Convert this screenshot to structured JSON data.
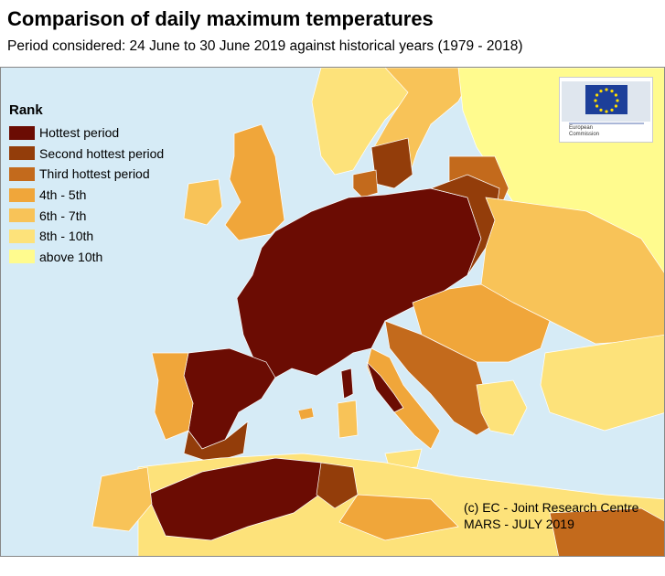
{
  "title": "Comparison of daily maximum temperatures",
  "subtitle": "Period considered: 24 June to 30 June 2019 against historical years (1979 - 2018)",
  "legend": {
    "title": "Rank",
    "items": [
      {
        "label": "Hottest period",
        "color": "#6b0c03"
      },
      {
        "label": "Second hottest period",
        "color": "#933d0a"
      },
      {
        "label": "Third hottest period",
        "color": "#c36a1c"
      },
      {
        "label": "4th - 5th",
        "color": "#f0a63a"
      },
      {
        "label": "6th - 7th",
        "color": "#f8c358"
      },
      {
        "label": "8th - 10th",
        "color": "#fde27a"
      },
      {
        "label": "above 10th",
        "color": "#fffb8e"
      }
    ]
  },
  "credit": {
    "line1": "(c) EC - Joint Research Centre",
    "line2": "MARS - JULY 2019"
  },
  "logo": {
    "line1": "European",
    "line2": "Commission"
  },
  "colors": {
    "sea": "#d6ebf6",
    "border": "#ffffff"
  }
}
